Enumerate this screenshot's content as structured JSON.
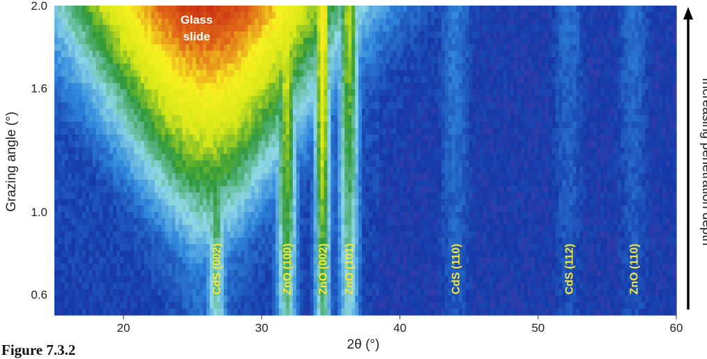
{
  "caption": "Figure 7.3.2",
  "chart_data": {
    "type": "heatmap",
    "title": "",
    "xlabel": "2θ (°)",
    "ylabel": "Grazing angle (°)",
    "xlim": [
      15,
      60
    ],
    "ylim": [
      0.5,
      2.0
    ],
    "x_ticks": [
      20,
      30,
      40,
      50,
      60
    ],
    "y_ticks": [
      {
        "value": 0.6,
        "label": "0.6"
      },
      {
        "value": 1.0,
        "label": "1.0"
      },
      {
        "value": 1.6,
        "label": "1.6"
      },
      {
        "value": 2.0,
        "label": "2.0"
      }
    ],
    "side_annotation": "Increasing penetration depth",
    "colormap": [
      "#5a1e72",
      "#8a4fb0",
      "#1538a8",
      "#2f86dc",
      "#8fd8e6",
      "#2f9a3a",
      "#d8e818",
      "#f8f020",
      "#e06818",
      "#c82a10"
    ],
    "features": [
      {
        "label": "Glass slide",
        "x_center": 26.0,
        "x_width": 4.6,
        "width_grows_with_angle": true,
        "top_intensity": 1.0
      },
      {
        "label": "CdS (002)",
        "x_center": 26.7,
        "x_width": 0.8,
        "width_grows_with_angle": false,
        "top_intensity": 0.48
      },
      {
        "label": "ZnO (100)",
        "x_center": 31.8,
        "x_width": 0.8,
        "width_grows_with_angle": false,
        "top_intensity": 0.52
      },
      {
        "label": "ZnO (002)",
        "x_center": 34.4,
        "x_width": 0.6,
        "width_grows_with_angle": false,
        "top_intensity": 0.58
      },
      {
        "label": "ZnO (101)",
        "x_center": 36.3,
        "x_width": 0.8,
        "width_grows_with_angle": false,
        "top_intensity": 0.45
      },
      {
        "label": "CdS (110)",
        "x_center": 44.0,
        "x_width": 1.2,
        "width_grows_with_angle": false,
        "top_intensity": 0.12
      },
      {
        "label": "CdS (112)",
        "x_center": 52.2,
        "x_width": 1.2,
        "width_grows_with_angle": false,
        "top_intensity": 0.1
      },
      {
        "label": "ZnO (110)",
        "x_center": 56.9,
        "x_width": 1.2,
        "width_grows_with_angle": false,
        "top_intensity": 0.1
      }
    ]
  }
}
